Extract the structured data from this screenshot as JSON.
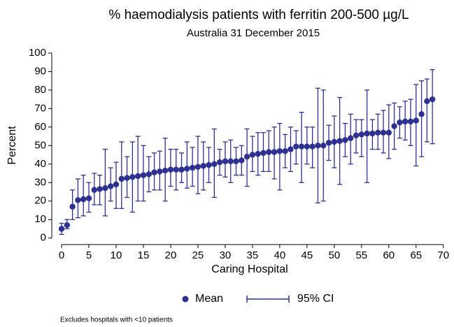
{
  "chart_data": {
    "type": "errorbar",
    "title": "% haemodialysis patients with ferritin 200-500 µg/L",
    "subtitle": "Australia 31 December 2015",
    "x_label": "Caring Hospital",
    "y_label": "Percent",
    "note": "Excludes hospitals with <10 patients",
    "x": [
      0,
      1,
      2,
      3,
      4,
      5,
      6,
      7,
      8,
      9,
      10,
      11,
      12,
      13,
      14,
      15,
      16,
      17,
      18,
      19,
      20,
      21,
      22,
      23,
      24,
      25,
      26,
      27,
      28,
      29,
      30,
      31,
      32,
      33,
      34,
      35,
      36,
      37,
      38,
      39,
      40,
      41,
      42,
      43,
      44,
      45,
      46,
      47,
      48,
      49,
      50,
      51,
      52,
      53,
      54,
      55,
      56,
      57,
      58,
      59,
      60,
      61,
      62,
      63,
      64,
      65,
      66,
      67,
      68
    ],
    "series": [
      {
        "name": "Mean",
        "color": "#2e3192",
        "values": [
          5,
          7,
          17,
          20.5,
          21,
          21.5,
          26,
          26.5,
          27,
          28,
          29,
          32,
          32.5,
          33,
          33.5,
          34,
          34.5,
          35.5,
          36,
          36.5,
          37,
          37,
          37,
          37.5,
          38,
          38.5,
          39,
          39.5,
          40,
          41,
          41.5,
          41.5,
          41.5,
          42,
          44,
          45,
          45.5,
          46,
          46.5,
          46.5,
          47,
          47,
          48,
          49.5,
          49.5,
          49.5,
          49.5,
          50,
          50,
          51.5,
          52,
          52.5,
          53,
          54,
          55.5,
          56,
          56.5,
          56.5,
          57,
          57,
          57,
          60.5,
          62.5,
          63,
          63,
          63.5,
          67,
          74,
          75
        ]
      },
      {
        "name": "95% CI",
        "color": "#2e3192",
        "low": [
          2,
          5,
          10,
          11,
          12,
          14,
          18,
          18,
          12,
          20,
          16,
          16,
          22,
          14,
          20,
          20,
          25,
          26,
          26,
          20,
          28,
          26,
          30,
          27,
          28,
          24,
          26,
          30,
          22,
          34,
          33,
          30,
          34,
          34,
          28,
          36,
          34,
          36,
          36,
          32,
          26,
          38,
          36,
          40,
          30,
          40,
          38,
          19,
          20,
          42,
          38,
          29,
          44,
          40,
          46,
          44,
          30,
          48,
          48,
          46,
          43,
          48,
          54,
          53,
          50,
          39,
          44,
          52,
          51
        ],
        "high": [
          8,
          10,
          26,
          32,
          34,
          30,
          35,
          34,
          48,
          38,
          41,
          52,
          44,
          52,
          55,
          50,
          44,
          46,
          47,
          54,
          48,
          48,
          46,
          52,
          49,
          55,
          52,
          49,
          59,
          48,
          52,
          53,
          49,
          50,
          59,
          55,
          57,
          57,
          58,
          60,
          62,
          56,
          60,
          58,
          68,
          60,
          60,
          81,
          80,
          61,
          66,
          76,
          62,
          67,
          64,
          64,
          80,
          64,
          67,
          69,
          72,
          73,
          71,
          74,
          75,
          83,
          85,
          86,
          91
        ]
      }
    ],
    "xlim": [
      -1.8,
      70.8
    ],
    "ylim": [
      -3.5,
      103
    ],
    "xticks": [
      0,
      5,
      10,
      15,
      20,
      25,
      30,
      35,
      40,
      45,
      50,
      55,
      60,
      65,
      70
    ],
    "yticks": [
      0,
      10,
      20,
      30,
      40,
      50,
      60,
      70,
      80,
      90,
      100
    ]
  }
}
